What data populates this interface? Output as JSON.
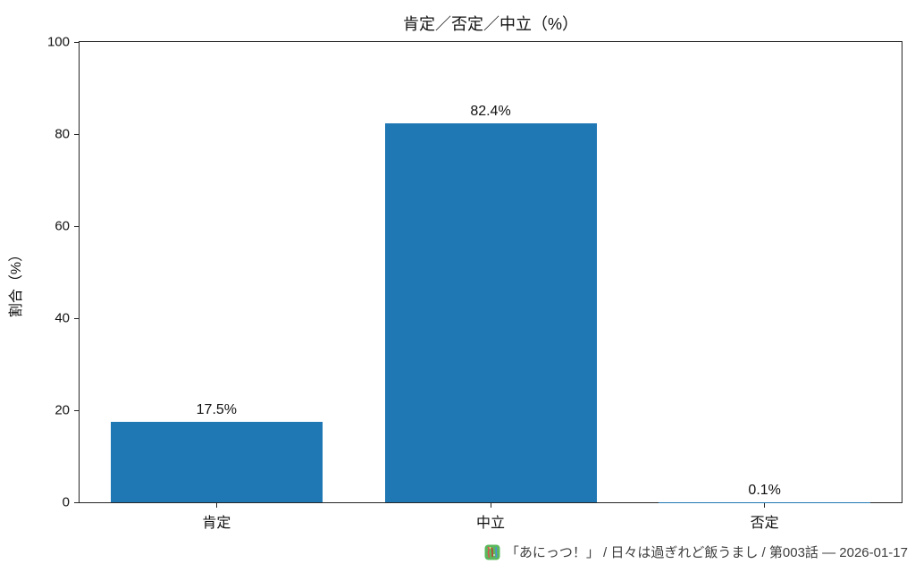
{
  "page": {
    "background": "#ffffff"
  },
  "chart_data": {
    "type": "bar",
    "title": "肯定／否定／中立（%）",
    "xlabel": "",
    "ylabel": "割合（%）",
    "categories": [
      "肯定",
      "中立",
      "否定"
    ],
    "values": [
      17.5,
      82.4,
      0.1
    ],
    "bar_labels": [
      "17.5%",
      "82.4%",
      "0.1%"
    ],
    "ylim": [
      0,
      100
    ],
    "yticks": [
      0,
      20,
      40,
      60,
      80,
      100
    ],
    "bar_color": "#1f77b4",
    "axis_color": "#262626",
    "grid": false,
    "legend": "none"
  },
  "caption": {
    "icon": "mascot-emoji-icon",
    "icon_color": "#5cb85c",
    "text": "「あにっつ！」 / 日々は過ぎれど飯うまし / 第003話 — 2026-01-17",
    "color": "#3d3d3d"
  }
}
